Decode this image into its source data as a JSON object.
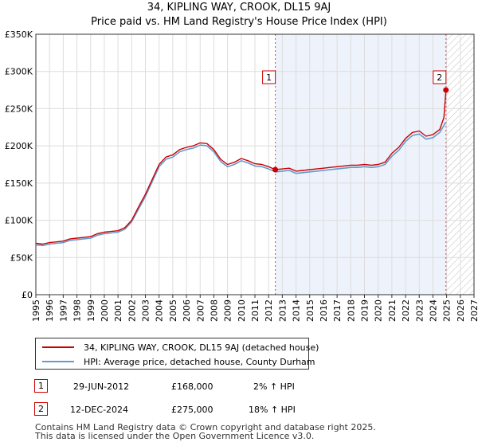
{
  "title_line1": "34, KIPLING WAY, CROOK, DL15 9AJ",
  "title_line2": "Price paid vs. HM Land Registry's House Price Index (HPI)",
  "chart_data": {
    "type": "line",
    "xlim": [
      1995,
      2027
    ],
    "ylim": [
      0,
      350000
    ],
    "y_ticks": [
      {
        "value": 0,
        "label": "£0"
      },
      {
        "value": 50000,
        "label": "£50K"
      },
      {
        "value": 100000,
        "label": "£100K"
      },
      {
        "value": 150000,
        "label": "£150K"
      },
      {
        "value": 200000,
        "label": "£200K"
      },
      {
        "value": 250000,
        "label": "£250K"
      },
      {
        "value": 300000,
        "label": "£300K"
      },
      {
        "value": 350000,
        "label": "£350K"
      }
    ],
    "x_ticks": [
      "1995",
      "1996",
      "1997",
      "1998",
      "1999",
      "2000",
      "2001",
      "2002",
      "2003",
      "2004",
      "2005",
      "2006",
      "2007",
      "2008",
      "2009",
      "2010",
      "2011",
      "2012",
      "2013",
      "2014",
      "2015",
      "2016",
      "2017",
      "2018",
      "2019",
      "2020",
      "2021",
      "2022",
      "2023",
      "2024",
      "2025",
      "2026",
      "2027"
    ],
    "grid": true,
    "series": [
      {
        "name": "34, KIPLING WAY, CROOK, DL15 9AJ (detached house)",
        "color": "#cc0000",
        "x": [
          1995.0,
          1995.5,
          1996.0,
          1996.5,
          1997.0,
          1997.5,
          1998.0,
          1998.5,
          1999.0,
          1999.5,
          2000.0,
          2000.5,
          2001.0,
          2001.5,
          2002.0,
          2002.5,
          2003.0,
          2003.5,
          2004.0,
          2004.5,
          2005.0,
          2005.5,
          2006.0,
          2006.5,
          2007.0,
          2007.5,
          2008.0,
          2008.5,
          2009.0,
          2009.5,
          2010.0,
          2010.5,
          2011.0,
          2011.5,
          2012.0,
          2012.49,
          2013.0,
          2013.5,
          2014.0,
          2014.5,
          2015.0,
          2015.5,
          2016.0,
          2016.5,
          2017.0,
          2017.5,
          2018.0,
          2018.5,
          2019.0,
          2019.5,
          2020.0,
          2020.5,
          2021.0,
          2021.5,
          2022.0,
          2022.5,
          2023.0,
          2023.5,
          2024.0,
          2024.5,
          2024.8,
          2024.95
        ],
        "y": [
          69000,
          68000,
          70000,
          71000,
          72000,
          75000,
          76000,
          77000,
          78000,
          82000,
          84000,
          85000,
          86000,
          90000,
          100000,
          118000,
          135000,
          155000,
          175000,
          185000,
          188000,
          195000,
          198000,
          200000,
          204000,
          203000,
          195000,
          182000,
          175000,
          178000,
          183000,
          180000,
          176000,
          175000,
          172000,
          168000,
          169000,
          170000,
          166000,
          167000,
          168000,
          169000,
          170000,
          171000,
          172000,
          173000,
          174000,
          174000,
          175000,
          174000,
          175000,
          178000,
          190000,
          198000,
          210000,
          218000,
          220000,
          213000,
          215000,
          222000,
          238000,
          275000
        ]
      },
      {
        "name": "HPI: Average price, detached house, County Durham",
        "color": "#6699cc",
        "x": [
          1995.0,
          1995.5,
          1996.0,
          1996.5,
          1997.0,
          1997.5,
          1998.0,
          1998.5,
          1999.0,
          1999.5,
          2000.0,
          2000.5,
          2001.0,
          2001.5,
          2002.0,
          2002.5,
          2003.0,
          2003.5,
          2004.0,
          2004.5,
          2005.0,
          2005.5,
          2006.0,
          2006.5,
          2007.0,
          2007.5,
          2008.0,
          2008.5,
          2009.0,
          2009.5,
          2010.0,
          2010.5,
          2011.0,
          2011.5,
          2012.0,
          2012.5,
          2013.0,
          2013.5,
          2014.0,
          2014.5,
          2015.0,
          2015.5,
          2016.0,
          2016.5,
          2017.0,
          2017.5,
          2018.0,
          2018.5,
          2019.0,
          2019.5,
          2020.0,
          2020.5,
          2021.0,
          2021.5,
          2022.0,
          2022.5,
          2023.0,
          2023.5,
          2024.0,
          2024.5,
          2024.95
        ],
        "y": [
          67000,
          66000,
          68000,
          69000,
          70000,
          73000,
          74000,
          75000,
          76000,
          80000,
          82000,
          83000,
          84000,
          88000,
          98000,
          115000,
          132000,
          152000,
          172000,
          182000,
          185000,
          192000,
          195000,
          197000,
          201000,
          200000,
          192000,
          179000,
          172000,
          175000,
          180000,
          177000,
          173000,
          172000,
          169000,
          165000,
          166000,
          167000,
          163000,
          164000,
          165000,
          166000,
          167000,
          168000,
          169000,
          170000,
          171000,
          171000,
          172000,
          171000,
          172000,
          175000,
          186000,
          194000,
          206000,
          214000,
          216000,
          209000,
          211000,
          218000,
          232000
        ]
      }
    ],
    "markers": [
      {
        "label": "1",
        "x": 2012.49,
        "y": 168000
      },
      {
        "label": "2",
        "x": 2024.95,
        "y": 275000
      }
    ],
    "legend": "bottom-left, below chart"
  },
  "legend": {
    "property_label": "34, KIPLING WAY, CROOK, DL15 9AJ (detached house)",
    "hpi_label": "HPI: Average price, detached house, County Durham"
  },
  "sales": [
    {
      "num": "1",
      "date": "29-JUN-2012",
      "price": "£168,000",
      "hpi": "2% ↑ HPI"
    },
    {
      "num": "2",
      "date": "12-DEC-2024",
      "price": "£275,000",
      "hpi": "18% ↑ HPI"
    }
  ],
  "footer": {
    "line1": "Contains HM Land Registry data © Crown copyright and database right 2025.",
    "line2": "This data is licensed under the Open Government Licence v3.0."
  }
}
